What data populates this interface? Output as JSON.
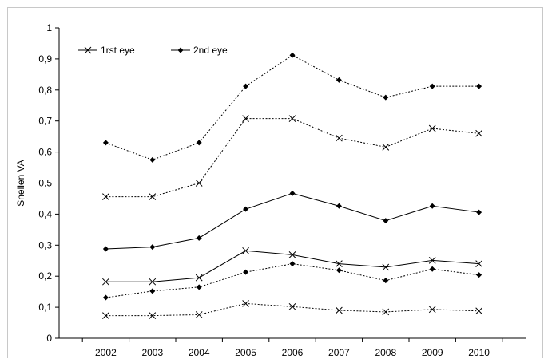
{
  "chart_data": {
    "type": "line",
    "title": "",
    "xlabel": "",
    "ylabel": "Snellen VA",
    "ylim": [
      0,
      1
    ],
    "yticks": [
      "0",
      "0,1",
      "0,2",
      "0,3",
      "0,4",
      "0,5",
      "0,6",
      "0,7",
      "0,8",
      "0,9",
      "1"
    ],
    "categories": [
      "2002",
      "2003",
      "2004",
      "2005",
      "2006",
      "2007",
      "2008",
      "2009",
      "2010"
    ],
    "grid": false,
    "legend_position": "top-left",
    "legend": [
      {
        "label": "1rst eye",
        "marker": "x"
      },
      {
        "label": "2nd eye",
        "marker": "diamond"
      }
    ],
    "series": [
      {
        "group": "2nd eye",
        "marker": "diamond",
        "style": "dotted",
        "values": [
          0.63,
          0.575,
          0.63,
          0.812,
          0.912,
          0.832,
          0.776,
          0.812,
          0.812
        ]
      },
      {
        "group": "1rst eye",
        "marker": "x",
        "style": "dotted",
        "values": [
          0.456,
          0.456,
          0.5,
          0.708,
          0.708,
          0.645,
          0.616,
          0.676,
          0.66
        ]
      },
      {
        "group": "2nd eye",
        "marker": "diamond",
        "style": "solid",
        "values": [
          0.288,
          0.294,
          0.323,
          0.416,
          0.467,
          0.426,
          0.379,
          0.426,
          0.406
        ]
      },
      {
        "group": "1rst eye",
        "marker": "x",
        "style": "solid",
        "values": [
          0.182,
          0.182,
          0.195,
          0.282,
          0.269,
          0.24,
          0.229,
          0.251,
          0.24
        ]
      },
      {
        "group": "2nd eye",
        "marker": "diamond",
        "style": "dotted",
        "values": [
          0.131,
          0.152,
          0.165,
          0.213,
          0.24,
          0.219,
          0.186,
          0.223,
          0.204
        ]
      },
      {
        "group": "1rst eye",
        "marker": "x",
        "style": "dotted",
        "values": [
          0.073,
          0.073,
          0.076,
          0.112,
          0.102,
          0.09,
          0.085,
          0.093,
          0.088
        ]
      }
    ]
  }
}
